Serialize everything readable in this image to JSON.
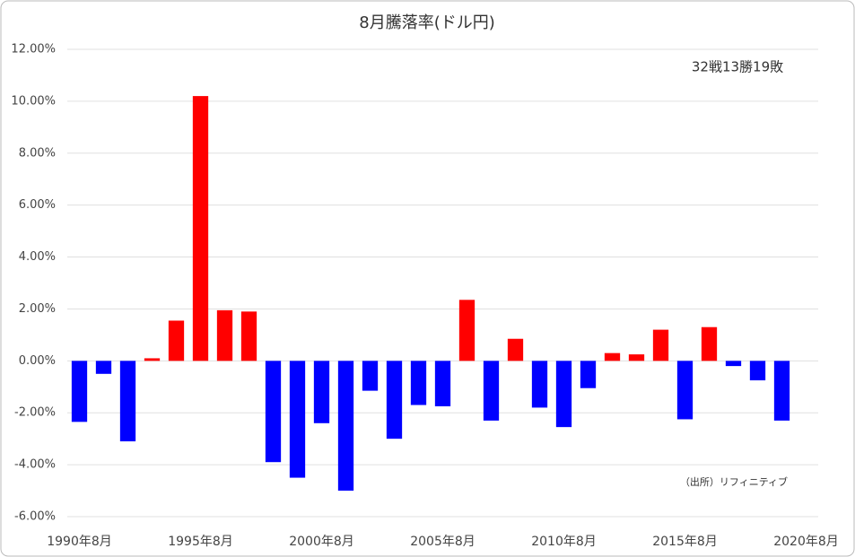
{
  "chart_data": {
    "type": "bar",
    "title": "8月騰落率(ドル円)",
    "annotation": "32戦13勝19敗",
    "source": "（出所）リフィニティブ",
    "categories": [
      "1990年8月",
      null,
      null,
      null,
      null,
      "1995年8月",
      null,
      null,
      null,
      null,
      "2000年8月",
      null,
      null,
      null,
      null,
      "2005年8月",
      null,
      null,
      null,
      null,
      "2010年8月",
      null,
      null,
      null,
      null,
      "2015年8月",
      null,
      null,
      null,
      null,
      "2020年8月"
    ],
    "values": [
      -2.35,
      -0.5,
      -3.1,
      0.1,
      1.55,
      10.2,
      1.95,
      1.9,
      -3.9,
      -4.5,
      -2.4,
      -5.0,
      -1.15,
      -3.0,
      -1.7,
      -1.75,
      2.35,
      -2.3,
      0.85,
      -1.8,
      -2.55,
      -1.05,
      0.3,
      0.25,
      1.2,
      -2.25,
      1.3,
      -0.2,
      -0.75,
      -2.3,
      null
    ],
    "positive_color": "#ff0000",
    "negative_color": "#0000ff",
    "ylim": [
      -6,
      12
    ],
    "yticks": [
      {
        "value": -6,
        "label": "-6.00%"
      },
      {
        "value": -4,
        "label": "-4.00%"
      },
      {
        "value": -2,
        "label": "-2.00%"
      },
      {
        "value": 0,
        "label": "0.00%"
      },
      {
        "value": 2,
        "label": "2.00%"
      },
      {
        "value": 4,
        "label": "4.00%"
      },
      {
        "value": 6,
        "label": "6.00%"
      },
      {
        "value": 8,
        "label": "8.00%"
      },
      {
        "value": 10,
        "label": "10.00%"
      },
      {
        "value": 12,
        "label": "12.00%"
      }
    ],
    "grid": true
  }
}
